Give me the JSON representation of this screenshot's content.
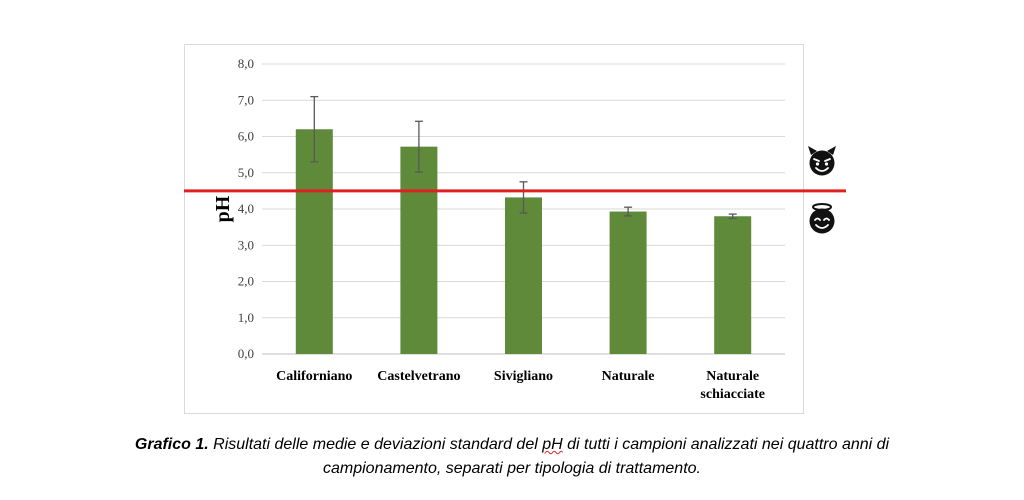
{
  "chart_data": {
    "type": "bar",
    "categories": [
      "Californiano",
      "Castelvetrano",
      "Sivigliano",
      "Naturale",
      "Naturale schiacciate"
    ],
    "category_lines": [
      [
        "Californiano"
      ],
      [
        "Castelvetrano"
      ],
      [
        "Sivigliano"
      ],
      [
        "Naturale"
      ],
      [
        "Naturale",
        "schiacciate"
      ]
    ],
    "values": [
      6.2,
      5.72,
      4.32,
      3.93,
      3.8
    ],
    "errors": [
      0.9,
      0.7,
      0.43,
      0.12,
      0.06
    ],
    "ylabel": "pH",
    "ylim": [
      0,
      8
    ],
    "yticks": [
      "0,0",
      "1,0",
      "2,0",
      "3,0",
      "4,0",
      "5,0",
      "6,0",
      "7,0",
      "8,0"
    ],
    "grid": true,
    "bar_color": "#5f8a3a",
    "threshold": {
      "value": 4.5,
      "color": "#e02020"
    },
    "emoji_above": "smiling-devil-icon",
    "emoji_below": "smiling-halo-icon"
  },
  "caption": {
    "bold": "Grafico 1.",
    "line1": " Risultati delle medie e deviazioni standard del ",
    "ph": "pH",
    "line1_end": " di tutti i campioni analizzati nei quattro anni di",
    "line2": "campionamento, separati per tipologia di trattamento."
  }
}
